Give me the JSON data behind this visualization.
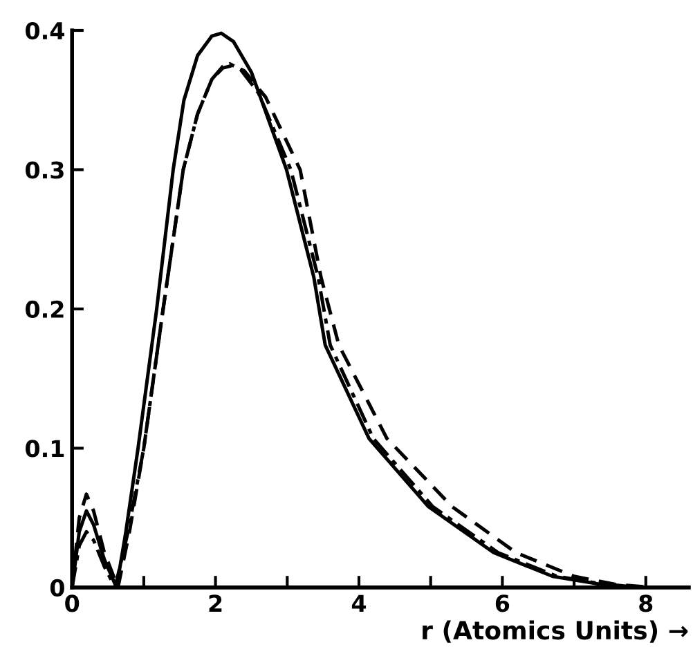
{
  "chart_data": {
    "type": "line",
    "xlabel": "r (Atomics Units) →",
    "xlim": [
      0,
      8.6
    ],
    "ylim": [
      0,
      0.4
    ],
    "xticks": [
      0,
      {
        "value": 1,
        "label": null
      },
      2,
      {
        "value": 3,
        "label": null
      },
      4,
      {
        "value": 5,
        "label": null
      },
      6,
      {
        "value": 7,
        "label": null
      },
      8
    ],
    "yticks": [
      0,
      0.1,
      0.2,
      0.3,
      0.4
    ],
    "grid": false,
    "legend": false,
    "marker": "none",
    "series": [
      {
        "color": "#000000",
        "line_style": "solid",
        "x": [
          0,
          0.1,
          0.2,
          0.3,
          0.45,
          0.62,
          0.75,
          0.92,
          1.18,
          1.41,
          1.56,
          1.75,
          1.95,
          2.08,
          2.25,
          2.5,
          2.99,
          3.37,
          3.53,
          4.14,
          4.97,
          5.88,
          6.7,
          7.4,
          8.0
        ],
        "values": [
          0,
          0.04,
          0.055,
          0.045,
          0.02,
          0,
          0.04,
          0.1,
          0.2,
          0.3,
          0.35,
          0.382,
          0.396,
          0.398,
          0.392,
          0.37,
          0.3,
          0.223,
          0.174,
          0.107,
          0.058,
          0.025,
          0.008,
          0.002,
          0
        ]
      },
      {
        "color": "#000000",
        "line_style": "dashdot",
        "x": [
          0,
          0.1,
          0.2,
          0.3,
          0.45,
          0.6,
          0.78,
          1.0,
          1.27,
          1.55,
          1.75,
          1.95,
          2.1,
          2.2,
          2.35,
          2.6,
          3.05,
          3.43,
          3.6,
          4.2,
          5.03,
          5.94,
          6.76,
          7.45,
          8.0
        ],
        "values": [
          0,
          0.03,
          0.04,
          0.034,
          0.015,
          0,
          0.04,
          0.1,
          0.2,
          0.3,
          0.34,
          0.365,
          0.374,
          0.376,
          0.372,
          0.355,
          0.3,
          0.223,
          0.174,
          0.107,
          0.058,
          0.025,
          0.008,
          0.002,
          0
        ]
      },
      {
        "color": "#000000",
        "line_style": "dashed",
        "x": [
          0,
          0.1,
          0.2,
          0.3,
          0.45,
          0.64,
          0.8,
          1.0,
          1.27,
          1.55,
          1.75,
          1.95,
          2.1,
          2.25,
          2.4,
          2.7,
          3.18,
          3.47,
          3.72,
          4.39,
          5.3,
          6.19,
          7.0,
          7.6,
          8.1
        ],
        "values": [
          0,
          0.05,
          0.067,
          0.055,
          0.025,
          0,
          0.04,
          0.1,
          0.2,
          0.3,
          0.34,
          0.365,
          0.373,
          0.375,
          0.371,
          0.352,
          0.3,
          0.223,
          0.174,
          0.107,
          0.058,
          0.025,
          0.008,
          0.002,
          0
        ]
      }
    ]
  }
}
